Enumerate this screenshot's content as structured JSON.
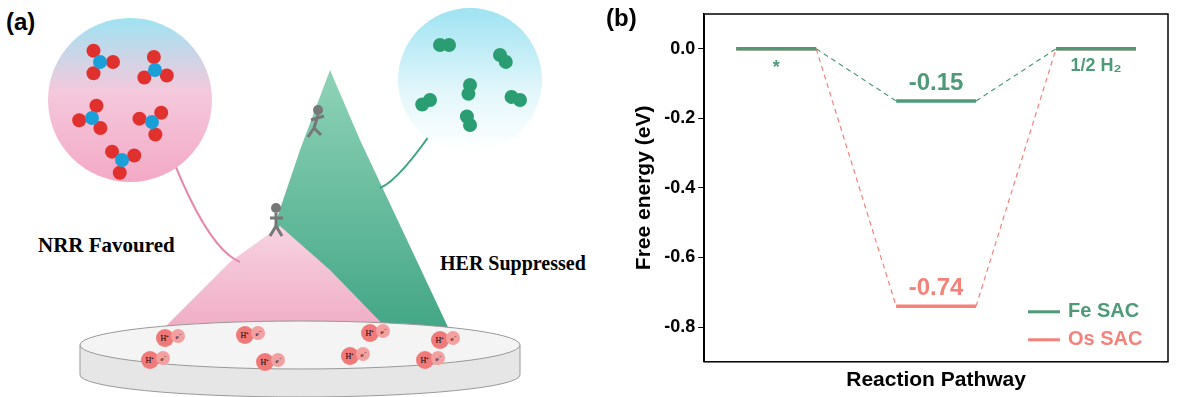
{
  "diagram": {
    "panel_label": "(a)",
    "left_label": "NRR Favoured",
    "right_label": "HER Suppressed",
    "surface_pair": [
      "H⁺",
      "e⁻"
    ]
  },
  "chart_data": {
    "panel_label": "(b)",
    "type": "line",
    "y_label": "Free energy (eV)",
    "x_label": "Reaction Pathway",
    "series": [
      {
        "name": "Fe SAC",
        "color": "#4e9a78",
        "values": [
          0,
          -0.15,
          0
        ],
        "value_labels": [
          null,
          "-0.15",
          null
        ]
      },
      {
        "name": "Os SAC",
        "color": "#f4827a",
        "values": [
          0,
          -0.74,
          0
        ],
        "value_labels": [
          null,
          "-0.74",
          null
        ]
      }
    ],
    "annotations": [
      {
        "text": "*",
        "step": 0
      },
      {
        "text": "1/2 H₂",
        "step": 2
      }
    ],
    "ylim": [
      -0.9,
      0.1
    ],
    "yticks": [
      {
        "value": 0,
        "label": "0.0"
      },
      -0.2,
      -0.4,
      -0.6,
      -0.8
    ],
    "grid": false,
    "legend": "lower right",
    "tick_labels": "y",
    "data_labels": true
  }
}
